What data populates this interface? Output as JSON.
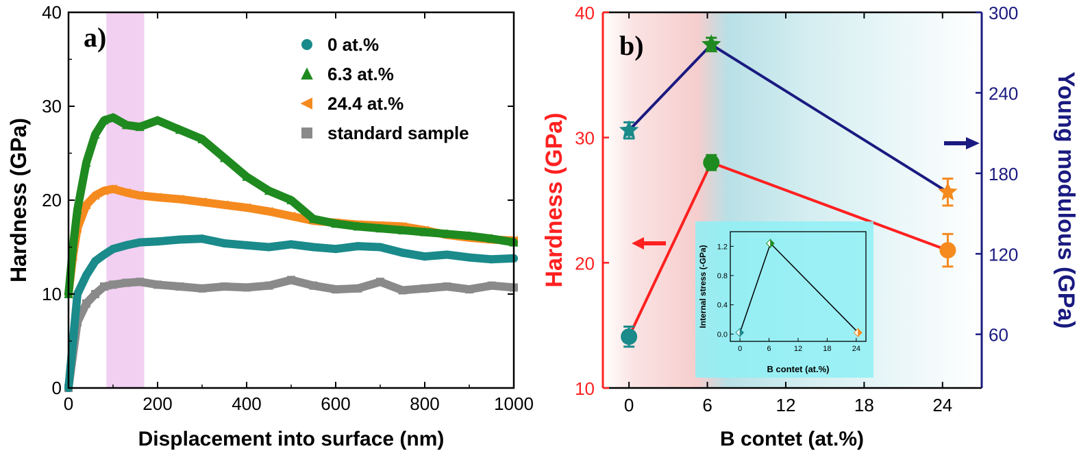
{
  "chart_data": [
    {
      "panel": "a)",
      "type": "line",
      "xlabel": "Displacement into surface (nm)",
      "ylabel": "Hardness (GPa)",
      "xlim": [
        0,
        1000
      ],
      "ylim": [
        0,
        40
      ],
      "xticks": [
        "0",
        "200",
        "400",
        "600",
        "800",
        "1000"
      ],
      "yticks": [
        "0",
        "10",
        "20",
        "30",
        "40"
      ],
      "highlight_band": [
        85,
        170
      ],
      "legend_position": "top-right",
      "series": [
        {
          "name": "0 at.%",
          "marker": "circle",
          "color": "#1a8a8a",
          "x": [
            0,
            20,
            40,
            60,
            80,
            100,
            130,
            160,
            200,
            250,
            300,
            350,
            400,
            450,
            500,
            550,
            600,
            650,
            700,
            750,
            800,
            850,
            900,
            950,
            1000
          ],
          "y": [
            0,
            10,
            12,
            13.5,
            14.2,
            14.8,
            15.2,
            15.5,
            15.6,
            15.8,
            15.9,
            15.4,
            15.2,
            15.0,
            15.3,
            15.0,
            14.8,
            15.1,
            15.0,
            14.4,
            14.0,
            14.2,
            13.9,
            13.7,
            13.8
          ]
        },
        {
          "name": "6.3 at.%",
          "marker": "triangle-up",
          "color": "#1f8a1f",
          "x": [
            0,
            10,
            20,
            40,
            60,
            80,
            100,
            130,
            160,
            200,
            250,
            300,
            350,
            400,
            450,
            500,
            550,
            600,
            650,
            700,
            750,
            800,
            850,
            900,
            950,
            1000
          ],
          "y": [
            10,
            15,
            19,
            24,
            27,
            28.5,
            28.8,
            28,
            27.8,
            28.5,
            27.5,
            26.5,
            24.5,
            22.5,
            21,
            20,
            18,
            17.5,
            17.2,
            17,
            16.8,
            16.6,
            16.4,
            16.2,
            15.9,
            15.5
          ]
        },
        {
          "name": "24.4 at.%",
          "marker": "triangle-left",
          "color": "#f58a1f",
          "x": [
            0,
            10,
            20,
            40,
            60,
            80,
            100,
            130,
            160,
            200,
            250,
            300,
            350,
            400,
            450,
            500,
            550,
            600,
            650,
            700,
            750,
            800,
            850,
            900,
            950,
            1000
          ],
          "y": [
            10,
            14,
            17,
            19.5,
            20.5,
            21,
            21.2,
            20.8,
            20.5,
            20.3,
            20.1,
            19.8,
            19.5,
            19.2,
            18.8,
            18.3,
            17.8,
            17.6,
            17.4,
            17.3,
            17.2,
            16.8,
            16.3,
            16.0,
            15.8,
            15.7
          ]
        },
        {
          "name": "standard sample",
          "marker": "square",
          "color": "#8a8a8a",
          "x": [
            0,
            20,
            40,
            60,
            80,
            100,
            130,
            160,
            200,
            250,
            300,
            350,
            400,
            450,
            500,
            550,
            600,
            650,
            700,
            750,
            800,
            850,
            900,
            950,
            1000
          ],
          "y": [
            0,
            7,
            9,
            10,
            10.8,
            11,
            11.2,
            11.3,
            11.0,
            10.8,
            10.6,
            10.8,
            10.7,
            10.9,
            11.5,
            10.9,
            10.5,
            10.6,
            11.3,
            10.4,
            10.6,
            10.8,
            10.5,
            10.9,
            10.7
          ]
        }
      ]
    },
    {
      "panel": "b)",
      "type": "line",
      "xlabel": "B contet (at.%)",
      "ylabel_left": "Hardness (GPa)",
      "ylabel_right": "Young modulous (GPa)",
      "xlim": [
        -2,
        27
      ],
      "ylim_left": [
        10,
        40
      ],
      "ylim_right": [
        20,
        300
      ],
      "xticks": [
        "0",
        "6",
        "12",
        "18",
        "24"
      ],
      "yticks_left": [
        "10",
        "20",
        "30",
        "40"
      ],
      "yticks_right": [
        "60",
        "120",
        "180",
        "240",
        "300"
      ],
      "series": [
        {
          "name": "Hardness",
          "axis": "left",
          "line_color": "#ff2020",
          "marker": "circle",
          "x": [
            0,
            6.3,
            24.4
          ],
          "y": [
            14.1,
            28.0,
            21.0
          ],
          "yerr": [
            0.8,
            0.6,
            1.3
          ],
          "colors": [
            "#1a8a8a",
            "#1f8a1f",
            "#f58a1f"
          ]
        },
        {
          "name": "Young modulus",
          "axis": "right",
          "line_color": "#1a1a80",
          "marker": "star",
          "x": [
            0,
            6.3,
            24.4
          ],
          "y": [
            212,
            276,
            166
          ],
          "yerr": [
            6,
            5,
            10
          ],
          "colors": [
            "#1a8a8a",
            "#1f8a1f",
            "#f58a1f"
          ]
        }
      ],
      "inset": {
        "type": "line",
        "xlabel": "B contet (at.%)",
        "ylabel": "Internal stress (-GPa)",
        "xlim": [
          -2,
          26
        ],
        "ylim": [
          -0.1,
          1.4
        ],
        "xticks": [
          "0",
          "6",
          "12",
          "18",
          "24"
        ],
        "yticks": [
          "0.0",
          "0.4",
          "0.8",
          "1.2"
        ],
        "x": [
          0,
          6.3,
          24.4
        ],
        "y": [
          0.02,
          1.24,
          0.02
        ],
        "colors": [
          "#1a8a8a",
          "#1f8a1f",
          "#f58a1f"
        ]
      }
    }
  ]
}
